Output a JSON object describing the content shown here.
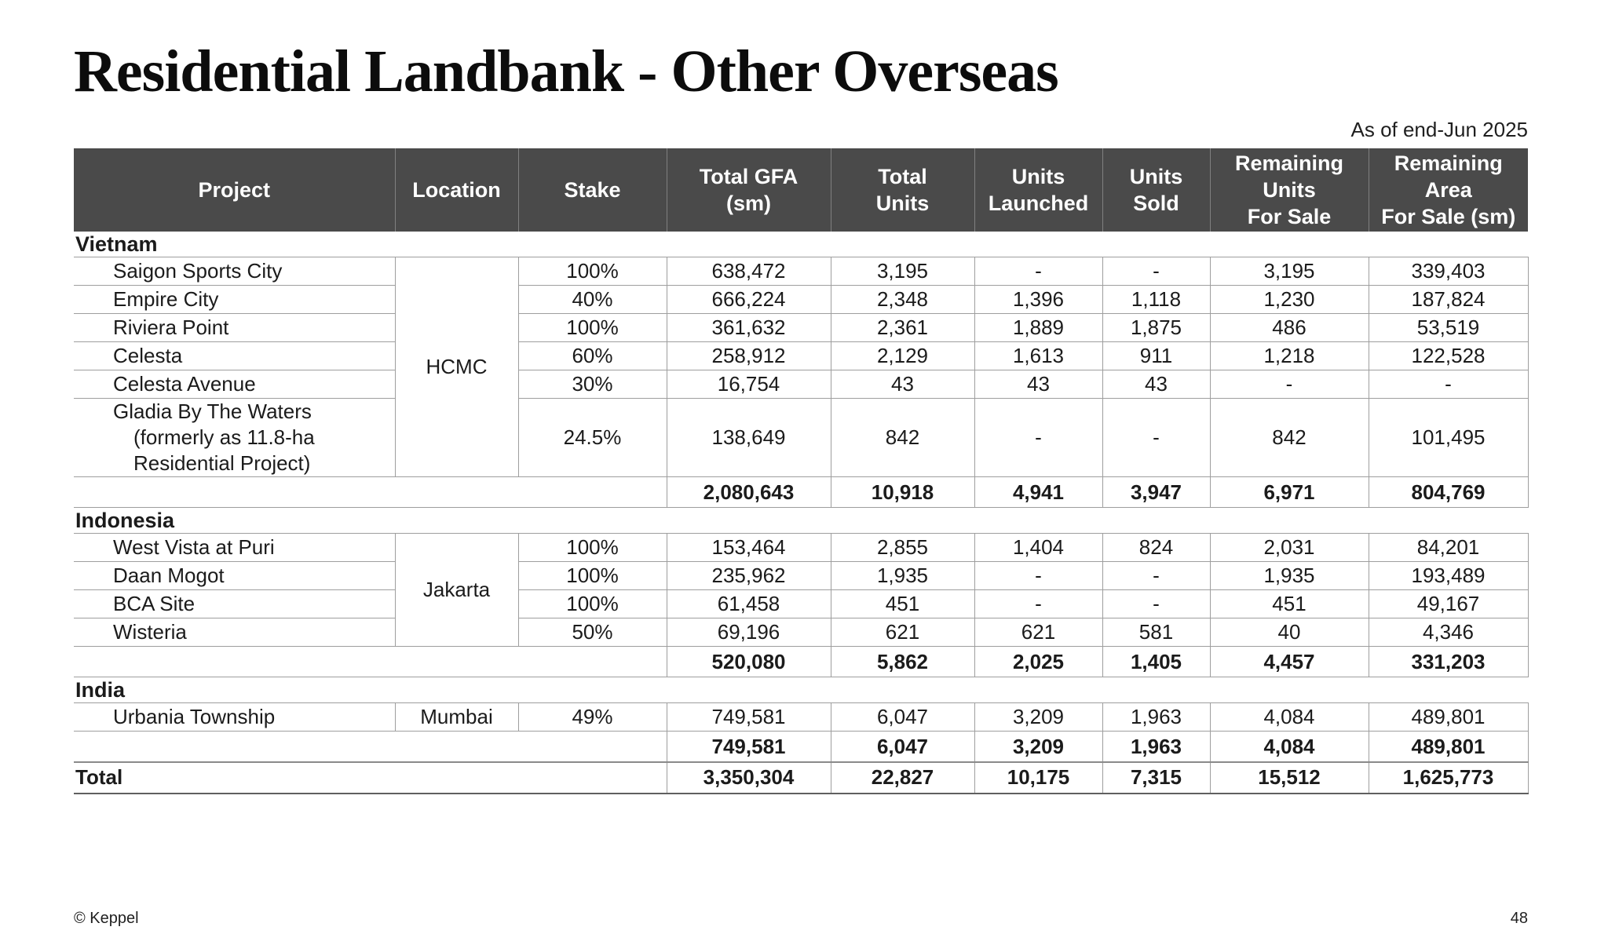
{
  "page": {
    "title": "Residential Landbank - Other Overseas",
    "as_of": "As of end-Jun 2025",
    "footer_left": "© Keppel",
    "page_number": "48"
  },
  "colors": {
    "header_bg": "#4a4a4a",
    "header_text": "#ffffff",
    "grid_line": "#9e9e9e",
    "body_text": "#1b1b1b"
  },
  "table": {
    "columns": [
      {
        "label": "Project"
      },
      {
        "label": "Location"
      },
      {
        "label": "Stake"
      },
      {
        "label": "Total GFA\n(sm)"
      },
      {
        "label": "Total\nUnits"
      },
      {
        "label": "Units\nLaunched"
      },
      {
        "label": "Units\nSold"
      },
      {
        "label": "Remaining\nUnits\nFor Sale"
      },
      {
        "label": "Remaining\nArea\nFor Sale (sm)"
      }
    ],
    "sections": [
      {
        "name": "Vietnam",
        "location": "HCMC",
        "rows": [
          {
            "project_lines": [
              "Saigon Sports City"
            ],
            "stake": "100%",
            "values": [
              "638,472",
              "3,195",
              "-",
              "-",
              "3,195",
              "339,403"
            ]
          },
          {
            "project_lines": [
              "Empire City"
            ],
            "stake": "40%",
            "values": [
              "666,224",
              "2,348",
              "1,396",
              "1,118",
              "1,230",
              "187,824"
            ]
          },
          {
            "project_lines": [
              "Riviera Point"
            ],
            "stake": "100%",
            "values": [
              "361,632",
              "2,361",
              "1,889",
              "1,875",
              "486",
              "53,519"
            ]
          },
          {
            "project_lines": [
              "Celesta"
            ],
            "stake": "60%",
            "values": [
              "258,912",
              "2,129",
              "1,613",
              "911",
              "1,218",
              "122,528"
            ]
          },
          {
            "project_lines": [
              "Celesta Avenue"
            ],
            "stake": "30%",
            "values": [
              "16,754",
              "43",
              "43",
              "43",
              "-",
              "-"
            ]
          },
          {
            "project_lines": [
              "Gladia By The Waters",
              "(formerly as 11.8-ha",
              "Residential Project)"
            ],
            "stake": "24.5%",
            "values": [
              "138,649",
              "842",
              "-",
              "-",
              "842",
              "101,495"
            ]
          }
        ],
        "subtotal": [
          "2,080,643",
          "10,918",
          "4,941",
          "3,947",
          "6,971",
          "804,769"
        ]
      },
      {
        "name": "Indonesia",
        "location": "Jakarta",
        "rows": [
          {
            "project_lines": [
              "West Vista at Puri"
            ],
            "stake": "100%",
            "values": [
              "153,464",
              "2,855",
              "1,404",
              "824",
              "2,031",
              "84,201"
            ]
          },
          {
            "project_lines": [
              "Daan Mogot"
            ],
            "stake": "100%",
            "values": [
              "235,962",
              "1,935",
              "-",
              "-",
              "1,935",
              "193,489"
            ]
          },
          {
            "project_lines": [
              "BCA Site"
            ],
            "stake": "100%",
            "values": [
              "61,458",
              "451",
              "-",
              "-",
              "451",
              "49,167"
            ]
          },
          {
            "project_lines": [
              "Wisteria"
            ],
            "stake": "50%",
            "values": [
              "69,196",
              "621",
              "621",
              "581",
              "40",
              "4,346"
            ]
          }
        ],
        "subtotal": [
          "520,080",
          "5,862",
          "2,025",
          "1,405",
          "4,457",
          "331,203"
        ]
      },
      {
        "name": "India",
        "location": "Mumbai",
        "rows": [
          {
            "project_lines": [
              "Urbania Township"
            ],
            "stake": "49%",
            "values": [
              "749,581",
              "6,047",
              "3,209",
              "1,963",
              "4,084",
              "489,801"
            ]
          }
        ],
        "subtotal": [
          "749,581",
          "6,047",
          "3,209",
          "1,963",
          "4,084",
          "489,801"
        ]
      }
    ],
    "total_label": "Total",
    "total": [
      "3,350,304",
      "22,827",
      "10,175",
      "7,315",
      "15,512",
      "1,625,773"
    ]
  }
}
